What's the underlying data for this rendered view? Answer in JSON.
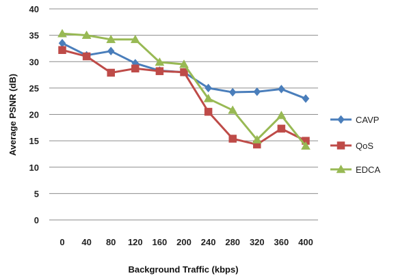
{
  "chart_data": {
    "type": "line",
    "title": "",
    "xlabel": "Background Traffic (kbps)",
    "ylabel": "Average PSNR (dB)",
    "categories": [
      "0",
      "40",
      "80",
      "120",
      "160",
      "200",
      "240",
      "280",
      "320",
      "360",
      "400"
    ],
    "yticks": [
      "0",
      "5",
      "10",
      "15",
      "20",
      "25",
      "30",
      "35",
      "40"
    ],
    "ylim": [
      0,
      40
    ],
    "grid": "horizontal",
    "legend_position": "right",
    "series": [
      {
        "name": "CAVP",
        "marker": "diamond",
        "color": "#4a7ebb",
        "values": [
          33.5,
          31.2,
          32.0,
          29.7,
          28.3,
          28.0,
          25.0,
          24.2,
          24.3,
          24.8,
          23.0
        ]
      },
      {
        "name": "QoS",
        "marker": "square",
        "color": "#be4b48",
        "values": [
          32.2,
          31.0,
          27.9,
          28.7,
          28.2,
          28.0,
          20.5,
          15.4,
          14.3,
          17.3,
          15.0
        ]
      },
      {
        "name": "EDCA",
        "marker": "triangle",
        "color": "#98b954",
        "values": [
          35.3,
          35.0,
          34.2,
          34.2,
          29.9,
          29.5,
          23.0,
          20.8,
          15.2,
          19.8,
          14.0
        ]
      }
    ]
  }
}
